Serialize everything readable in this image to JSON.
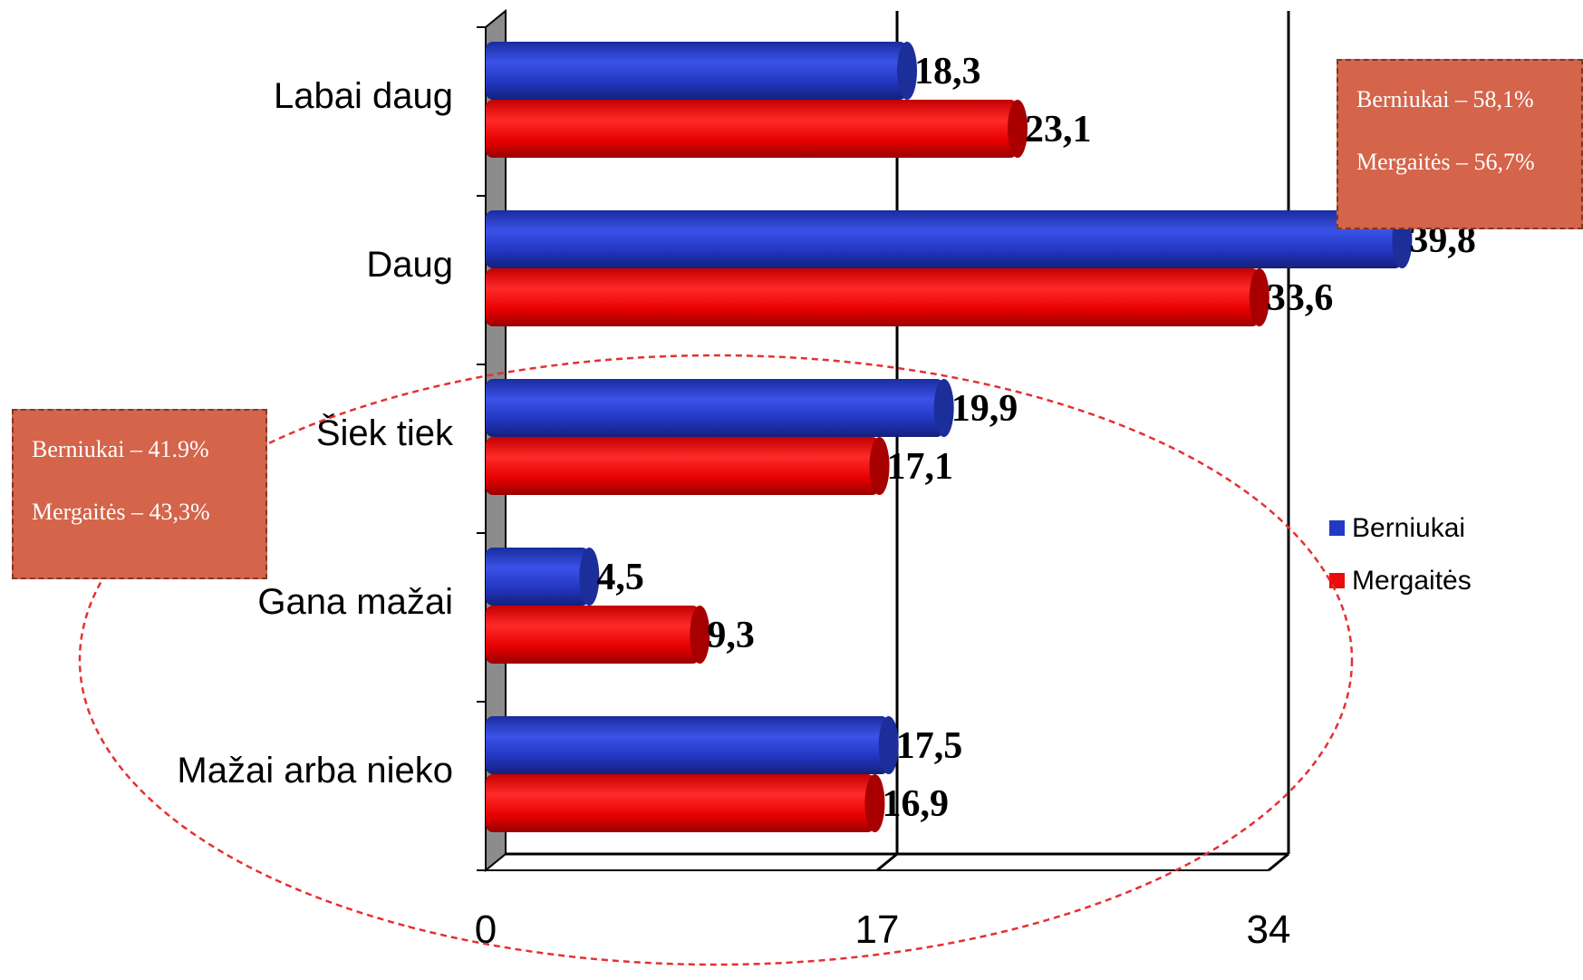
{
  "chart_data": {
    "type": "bar",
    "orientation": "horizontal",
    "categories": [
      "Labai daug",
      "Daug",
      "Šiek tiek",
      "Gana mažai",
      "Mažai arba nieko"
    ],
    "series": [
      {
        "name": "Berniukai",
        "values": [
          18.3,
          39.8,
          19.9,
          4.5,
          17.5
        ],
        "value_labels": [
          "18,3",
          "39,8",
          "19,9",
          "4,5",
          "17,5"
        ],
        "color": "#2339c4"
      },
      {
        "name": "Mergaitės",
        "values": [
          23.1,
          33.6,
          17.1,
          9.3,
          16.9
        ],
        "value_labels": [
          "23,1",
          "33,6",
          "17,1",
          "9,3",
          "16,9"
        ],
        "color": "#ee0a0a"
      }
    ],
    "x_ticks": [
      "0",
      "17",
      "34"
    ],
    "xlim": [
      0,
      34
    ],
    "grid": true,
    "legend_position": "right",
    "title": "",
    "xlabel": "",
    "ylabel": ""
  },
  "annotations": {
    "top_right": {
      "line1": "Berniukai – 58,1%",
      "line2": "Mergaitės – 56,7%"
    },
    "left": {
      "line1": "Berniukai – 41.9%",
      "line2": "Mergaitės – 43,3%"
    }
  },
  "colors": {
    "note_box": "#d4644a",
    "ellipse": "#e53030"
  }
}
